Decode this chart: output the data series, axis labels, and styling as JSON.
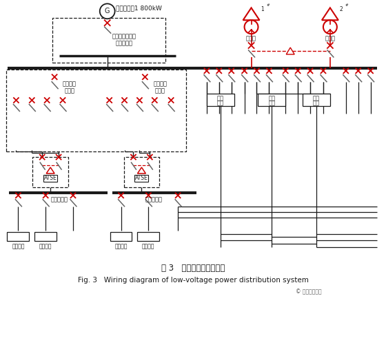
{
  "title_cn": "图 3   低压配电系统接线图",
  "title_en": "Fig. 3   Wiring diagram of low-voltage power distribution system",
  "subtitle": "© 建筑电气杂志",
  "bg_color": "#ffffff",
  "line_color": "#1a1a1a",
  "red_color": "#cc0000",
  "gray_color": "#666666"
}
